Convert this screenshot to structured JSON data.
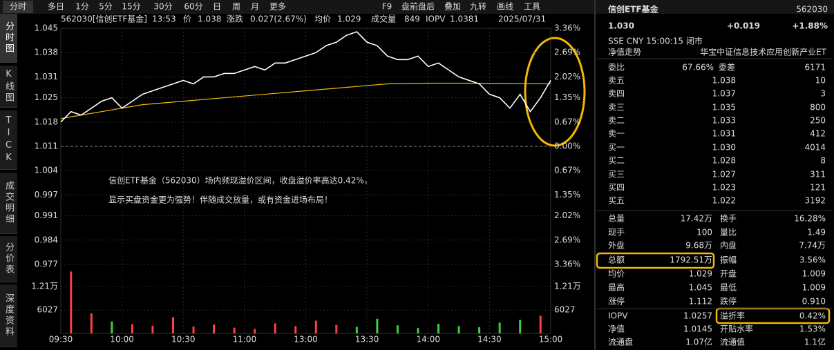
{
  "toolbar": {
    "tabs": [
      "分时",
      "多日",
      "1分",
      "5分",
      "15分",
      "30分",
      "60分",
      "日",
      "周",
      "月",
      "更多"
    ],
    "tools": [
      "F9",
      "盘前盘后",
      "叠加",
      "九转",
      "画线",
      "工具"
    ]
  },
  "side_tabs": [
    "分时图",
    "K线图",
    "TICK",
    "成交明细",
    "分价表",
    "深度资料"
  ],
  "header": {
    "code": "562030[信创ETF基金]",
    "time": "13:53",
    "price_label": "价",
    "price": "1.038",
    "change_label": "涨跌",
    "change": "0.027(2.67%)",
    "avg_label": "均价",
    "avg": "1.029",
    "vol_label": "成交量",
    "vol": "849",
    "iopv_label": "IOPV",
    "iopv": "1.0381",
    "date": "2025/07/31"
  },
  "chart_data": {
    "type": "line",
    "x_labels": [
      "09:30",
      "10:00",
      "10:30",
      "11:00",
      "13:00",
      "13:30",
      "14:00",
      "14:30",
      "15:00"
    ],
    "ylim": [
      0.977,
      1.045
    ],
    "yticks": [
      1.045,
      1.038,
      1.031,
      1.025,
      1.018,
      1.011,
      1.004,
      0.997,
      0.991,
      0.984,
      0.977
    ],
    "y2_labels": [
      "3.36%",
      "2.69%",
      "2.02%",
      "1.35%",
      "0.67%",
      "0.00%",
      "0.67%",
      "1.35%",
      "2.02%",
      "2.69%",
      "3.36%"
    ],
    "up_color": "#ff4040",
    "flat_color": "#c8c8c8",
    "down_color": "#3fcf3f",
    "price": {
      "color": "#ffffff",
      "values": [
        1.018,
        1.021,
        1.02,
        1.022,
        1.024,
        1.025,
        1.022,
        1.024,
        1.026,
        1.027,
        1.028,
        1.029,
        1.03,
        1.029,
        1.031,
        1.031,
        1.032,
        1.032,
        1.033,
        1.034,
        1.033,
        1.035,
        1.035,
        1.036,
        1.037,
        1.038,
        1.04,
        1.041,
        1.043,
        1.044,
        1.041,
        1.04,
        1.037,
        1.036,
        1.036,
        1.037,
        1.034,
        1.035,
        1.033,
        1.031,
        1.03,
        1.029,
        1.026,
        1.025,
        1.022,
        1.026,
        1.021,
        1.025,
        1.03
      ]
    },
    "average": {
      "color": "#f0c000",
      "values": [
        1.019,
        1.021,
        1.023,
        1.024,
        1.025,
        1.026,
        1.027,
        1.028,
        1.029,
        1.0292,
        1.0292,
        1.0291,
        1.029
      ]
    },
    "volume": {
      "ylim": [
        0,
        16600
      ],
      "yticks": [
        {
          "value": 12100,
          "label": "1.21万"
        },
        6027
      ],
      "values": [
        16000,
        5200,
        3100,
        2400,
        2000,
        4200,
        1800,
        2300,
        1500,
        1200,
        2600,
        1900,
        3300,
        2200,
        1700,
        3800,
        2100,
        1400,
        2500,
        1900,
        1600,
        2800,
        3500,
        4600
      ]
    }
  },
  "annotation": [
    "信创ETF基金（562030）场内频现溢价区间，收盘溢价率高达0.42%，",
    "显示买盘资金更为强势！伴随成交放量，或有资金进场布局！"
  ],
  "quote": {
    "name": "信创ETF基金",
    "code": "562030",
    "price": "1.030",
    "change": "+0.019",
    "pct": "+1.88%",
    "meta": "SSE  CNY  15:00:15  闭市",
    "nav_trend": "净值走势",
    "index_name": "华宝中证信息技术应用创新产业ET",
    "ratio_label": "委比",
    "ratio": "67.66%",
    "diff_label": "委差",
    "diff": "6171",
    "book": [
      {
        "label": "卖五",
        "price": "1.038",
        "vol": "10"
      },
      {
        "label": "卖四",
        "price": "1.037",
        "vol": "3"
      },
      {
        "label": "卖三",
        "price": "1.035",
        "vol": "800"
      },
      {
        "label": "卖二",
        "price": "1.033",
        "vol": "250"
      },
      {
        "label": "卖一",
        "price": "1.031",
        "vol": "412"
      },
      {
        "label": "买一",
        "price": "1.030",
        "vol": "4014"
      },
      {
        "label": "买二",
        "price": "1.028",
        "vol": "8"
      },
      {
        "label": "买三",
        "price": "1.027",
        "vol": "311"
      },
      {
        "label": "买四",
        "price": "1.023",
        "vol": "121"
      },
      {
        "label": "买五",
        "price": "1.022",
        "vol": "3192"
      }
    ],
    "stats": [
      {
        "l1": "总量",
        "v1": "17.42万",
        "c1": "#e8e8e8",
        "l2": "换手",
        "v2": "16.28%",
        "c2": "#e8e8e8"
      },
      {
        "l1": "现手",
        "v1": "100",
        "c1": "#e8e8e8",
        "l2": "量比",
        "v2": "1.49",
        "c2": "#e8e8e8"
      },
      {
        "l1": "外盘",
        "v1": "9.68万",
        "c1": "#ff4040",
        "l2": "内盘",
        "v2": "7.74万",
        "c2": "#3fcf3f"
      },
      {
        "l1": "总额",
        "v1": "1792.51万",
        "c1": "#e8e8e8",
        "l2": "振幅",
        "v2": "3.56%",
        "c2": "#e8e8e8"
      },
      {
        "l1": "均价",
        "v1": "1.029",
        "c1": "#ff4040",
        "l2": "开盘",
        "v2": "1.009",
        "c2": "#3fcf3f"
      },
      {
        "l1": "最高",
        "v1": "1.045",
        "c1": "#ff4040",
        "l2": "最低",
        "v2": "1.009",
        "c2": "#3fcf3f"
      },
      {
        "l1": "涨停",
        "v1": "1.112",
        "c1": "#ff4040",
        "l2": "跌停",
        "v2": "0.910",
        "c2": "#3fcf3f"
      },
      {
        "l1": "IOPV",
        "v1": "1.0257",
        "c1": "#e8e8e8",
        "l2": "溢折率",
        "v2": "0.42%",
        "c2": "#ff4040"
      },
      {
        "l1": "净值",
        "v1": "1.0145",
        "c1": "#3fcf3f",
        "l2": "开贴水率",
        "v2": "1.53%",
        "c2": "#ff4040"
      },
      {
        "l1": "流通盘",
        "v1": "1.07亿",
        "c1": "#e8e8e8",
        "l2": "流通值",
        "v2": "1.1亿",
        "c2": "#e8e8e8"
      }
    ]
  }
}
